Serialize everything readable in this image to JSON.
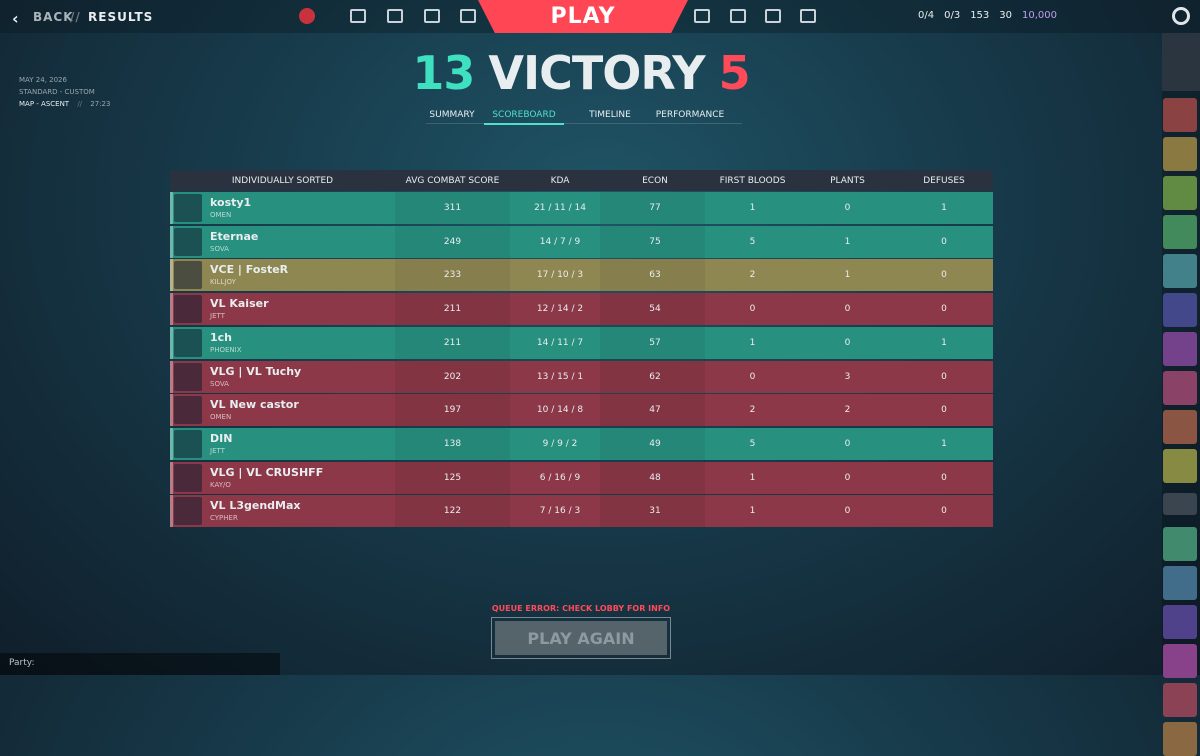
{
  "nav": {
    "back": "BACK",
    "separator": "//",
    "section": "RESULTS",
    "play": "PLAY",
    "currencies": [
      "0/4",
      "0/3",
      "153",
      "30",
      "10,000"
    ]
  },
  "match": {
    "date": "MAY 24, 2026",
    "mode": "STANDARD - CUSTOM",
    "map": "MAP - ASCENT",
    "separator": "//",
    "duration": "27:23"
  },
  "score": {
    "team": 13,
    "result": "VICTORY",
    "enemy": 5,
    "team_color": "#3fe0c0",
    "enemy_color": "#ff4a5a"
  },
  "tabs": {
    "items": [
      "SUMMARY",
      "SCOREBOARD",
      "TIMELINE",
      "PERFORMANCE"
    ],
    "active": 1
  },
  "table": {
    "headers": [
      "INDIVIDUALLY SORTED",
      "AVG COMBAT SCORE",
      "KDA",
      "ECON",
      "FIRST BLOODS",
      "PLANTS",
      "DEFUSES"
    ],
    "rows": [
      {
        "name": "kosty1",
        "agent": "OMEN",
        "acs": 311,
        "kda": "21 / 11 / 14",
        "econ": 77,
        "first_bloods": 1,
        "plants": 0,
        "defuses": 1,
        "color": "#27907f"
      },
      {
        "name": "Eternae",
        "agent": "SOVA",
        "acs": 249,
        "kda": "14 / 7 / 9",
        "econ": 75,
        "first_bloods": 5,
        "plants": 1,
        "defuses": 0,
        "color": "#27907f"
      },
      {
        "name": "VCE | FosteR",
        "agent": "KILLJOY",
        "acs": 233,
        "kda": "17 / 10 / 3",
        "econ": 63,
        "first_bloods": 2,
        "plants": 1,
        "defuses": 0,
        "color": "#8f8752"
      },
      {
        "name": "VL Kaiser",
        "agent": "JETT",
        "acs": 211,
        "kda": "12 / 14 / 2",
        "econ": 54,
        "first_bloods": 0,
        "plants": 0,
        "defuses": 0,
        "color": "#8c3848"
      },
      {
        "name": "1ch",
        "agent": "PHOENIX",
        "acs": 211,
        "kda": "14 / 11 / 7",
        "econ": 57,
        "first_bloods": 1,
        "plants": 0,
        "defuses": 1,
        "color": "#27907f"
      },
      {
        "name": "VLG | VL Tuchy",
        "agent": "SOVA",
        "acs": 202,
        "kda": "13 / 15 / 1",
        "econ": 62,
        "first_bloods": 0,
        "plants": 3,
        "defuses": 0,
        "color": "#8c3848"
      },
      {
        "name": "VL New castor",
        "agent": "OMEN",
        "acs": 197,
        "kda": "10 / 14 / 8",
        "econ": 47,
        "first_bloods": 2,
        "plants": 2,
        "defuses": 0,
        "color": "#8c3848"
      },
      {
        "name": "DIN",
        "agent": "JETT",
        "acs": 138,
        "kda": "9 / 9 / 2",
        "econ": 49,
        "first_bloods": 5,
        "plants": 0,
        "defuses": 1,
        "color": "#27907f"
      },
      {
        "name": "VLG | VL CRUSHFF",
        "agent": "KAY/O",
        "acs": 125,
        "kda": "6 / 16 / 9",
        "econ": 48,
        "first_bloods": 1,
        "plants": 0,
        "defuses": 0,
        "color": "#8c3848"
      },
      {
        "name": "VL L3gendMax",
        "agent": "CYPHER",
        "acs": 122,
        "kda": "7 / 16 / 3",
        "econ": 31,
        "first_bloods": 1,
        "plants": 0,
        "defuses": 0,
        "color": "#8c3848"
      }
    ]
  },
  "footer": {
    "error": "QUEUE ERROR: CHECK LOBBY FOR INFO",
    "button": "PLAY AGAIN",
    "party": "Party:"
  }
}
